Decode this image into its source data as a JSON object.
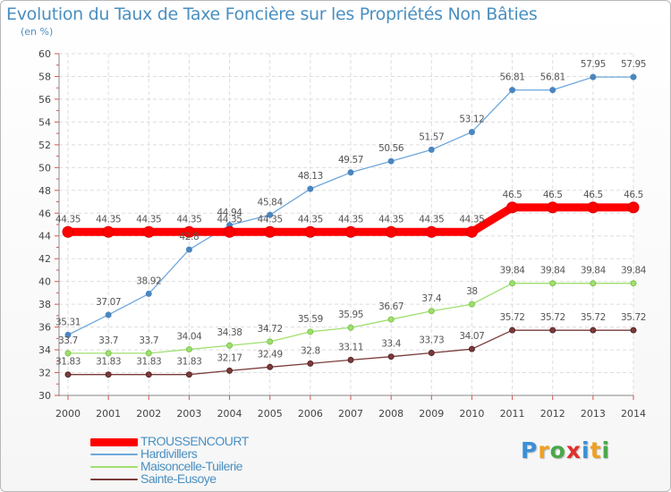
{
  "chart_data": {
    "type": "line",
    "title": "Evolution du Taux de Taxe Foncière sur les Propriétés Non Bâties",
    "subtitle": "(en %)",
    "xlabel": "",
    "ylabel": "",
    "categories": [
      "2000",
      "2001",
      "2002",
      "2003",
      "2004",
      "2005",
      "2006",
      "2007",
      "2008",
      "2009",
      "2010",
      "2011",
      "2012",
      "2013",
      "2014"
    ],
    "ylim": [
      30,
      60
    ],
    "yticks": [
      "30",
      "32",
      "34",
      "36",
      "38",
      "40",
      "42",
      "44",
      "46",
      "48",
      "50",
      "52",
      "54",
      "56",
      "58",
      "60"
    ],
    "grid": true,
    "legend_position": "bottom-left",
    "series": [
      {
        "name": "TROUSSENCOURT",
        "color": "#ff0000",
        "values": [
          44.35,
          44.35,
          44.35,
          44.35,
          44.35,
          44.35,
          44.35,
          44.35,
          44.35,
          44.35,
          44.35,
          46.5,
          46.5,
          46.5,
          46.5
        ],
        "labels": [
          "44.35",
          "44.35",
          "44.35",
          "44.35",
          "44.35",
          "44.35",
          "44.35",
          "44.35",
          "44.35",
          "44.35",
          "44.35",
          "46.5",
          "46.5",
          "46.5",
          "46.5"
        ]
      },
      {
        "name": "Hardivillers",
        "color": "#6fa8dc",
        "values": [
          35.31,
          37.07,
          38.92,
          42.8,
          44.94,
          45.84,
          48.13,
          49.57,
          50.56,
          51.57,
          53.12,
          56.81,
          56.81,
          57.95,
          57.95
        ],
        "labels": [
          "35.31",
          "37.07",
          "38.92",
          "42.8",
          "44.94",
          "45.84",
          "48.13",
          "49.57",
          "50.56",
          "51.57",
          "53.12",
          "56.81",
          "56.81",
          "57.95",
          "57.95"
        ]
      },
      {
        "name": "Maisoncelle-Tuilerie",
        "color": "#9fdf6f",
        "values": [
          33.7,
          33.7,
          33.7,
          34.04,
          34.38,
          34.72,
          35.59,
          35.95,
          36.67,
          37.4,
          38,
          39.84,
          39.84,
          39.84,
          39.84
        ],
        "labels": [
          "33.7",
          "33.7",
          "33.7",
          "34.04",
          "34.38",
          "34.72",
          "35.59",
          "35.95",
          "36.67",
          "37.4",
          "38",
          "39.84",
          "39.84",
          "39.84",
          "39.84"
        ]
      },
      {
        "name": "Sainte-Eusoye",
        "color": "#7a3b3b",
        "values": [
          31.83,
          31.83,
          31.83,
          31.83,
          32.17,
          32.49,
          32.8,
          33.11,
          33.4,
          33.73,
          34.07,
          35.72,
          35.72,
          35.72,
          35.72
        ],
        "labels": [
          "31.83",
          "31.83",
          "31.83",
          "31.83",
          "32.17",
          "32.49",
          "32.8",
          "33.11",
          "33.4",
          "33.73",
          "34.07",
          "35.72",
          "35.72",
          "35.72",
          "35.72"
        ]
      }
    ]
  },
  "logo": {
    "text": "Proxiti"
  }
}
